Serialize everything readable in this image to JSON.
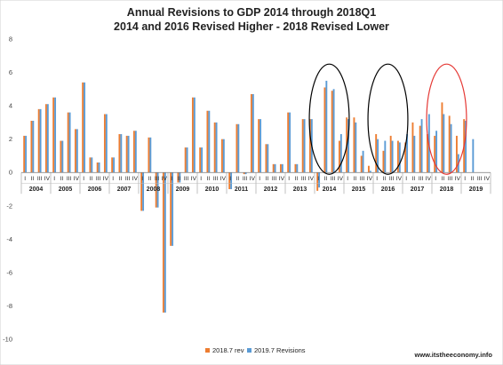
{
  "chart_data": {
    "type": "bar",
    "title": "Annual Revisions to GDP 2014 through 2018Q1",
    "subtitle": "2014 and 2016 Revised Higher - 2018 Revised Lower",
    "xlabel": "",
    "ylabel": "",
    "ylim": [
      -10,
      8
    ],
    "yticks": [
      -10,
      -8,
      -6,
      -4,
      -2,
      0,
      2,
      4,
      6,
      8
    ],
    "grid": false,
    "legend_position": "bottom",
    "quarter_labels": [
      "I",
      "II",
      "III",
      "IV"
    ],
    "years": [
      "2004",
      "2005",
      "2006",
      "2007",
      "2008",
      "2009",
      "2010",
      "2011",
      "2012",
      "2013",
      "2014",
      "2015",
      "2016",
      "2017",
      "2018",
      "2019"
    ],
    "series": [
      {
        "name": "2018.7 rev",
        "color": "#ED7D31",
        "values": [
          2.2,
          3.1,
          3.8,
          4.1,
          4.5,
          1.9,
          3.6,
          2.6,
          5.4,
          0.9,
          0.6,
          3.5,
          0.9,
          2.3,
          2.2,
          2.5,
          -2.3,
          2.1,
          -2.1,
          -8.4,
          -4.4,
          -0.6,
          1.5,
          4.5,
          1.5,
          3.7,
          3.0,
          2.0,
          -1.0,
          2.9,
          -0.1,
          4.7,
          3.2,
          1.7,
          0.5,
          0.5,
          3.6,
          0.5,
          3.2,
          3.2,
          -1.1,
          5.1,
          4.9,
          1.9,
          3.3,
          3.3,
          1.0,
          0.4,
          2.3,
          1.3,
          2.2,
          1.9,
          1.8,
          3.0,
          2.8,
          2.3,
          2.2,
          4.2,
          3.4,
          2.2,
          3.2,
          null,
          null,
          null
        ]
      },
      {
        "name": "2019.7 Revisions",
        "color": "#5B9BD5",
        "values": [
          2.2,
          3.1,
          3.8,
          4.1,
          4.5,
          1.9,
          3.6,
          2.6,
          5.4,
          0.9,
          0.6,
          3.5,
          0.9,
          2.3,
          2.2,
          2.5,
          -2.3,
          2.1,
          -2.1,
          -8.4,
          -4.4,
          -0.6,
          1.5,
          4.5,
          1.5,
          3.7,
          3.0,
          2.0,
          -1.0,
          2.9,
          -0.1,
          4.7,
          3.2,
          1.7,
          0.5,
          0.5,
          3.6,
          0.5,
          3.2,
          3.2,
          -0.9,
          5.5,
          5.0,
          2.3,
          3.2,
          3.0,
          1.3,
          0.1,
          2.0,
          1.9,
          1.9,
          1.8,
          2.3,
          2.2,
          3.2,
          3.5,
          2.5,
          3.5,
          2.9,
          1.1,
          3.1,
          2.0,
          null,
          null
        ]
      }
    ],
    "annotations": [
      {
        "shape": "ellipse",
        "color": "#000000",
        "around_year": "2014"
      },
      {
        "shape": "ellipse",
        "color": "#000000",
        "around_year": "2016"
      },
      {
        "shape": "ellipse",
        "color": "#E53935",
        "around_year": "2018"
      }
    ]
  },
  "credit": "www.itstheeconomy.info"
}
